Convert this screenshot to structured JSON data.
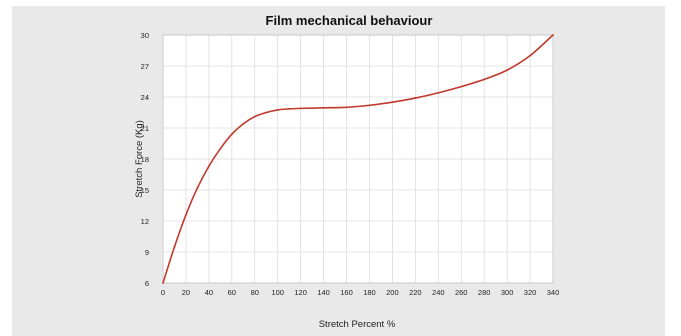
{
  "chart_data": {
    "type": "line",
    "title": "Film mechanical behaviour",
    "xlabel": "Stretch Percent %",
    "ylabel": "Stretch Force (Kg)",
    "xlim": [
      0,
      340
    ],
    "ylim": [
      6,
      30
    ],
    "xticks": [
      "0",
      "20",
      "40",
      "60",
      "80",
      "100",
      "120",
      "140",
      "160",
      "180",
      "200",
      "220",
      "240",
      "260",
      "280",
      "300",
      "320",
      "340"
    ],
    "yticks": [
      "6",
      "9",
      "12",
      "15",
      "18",
      "21",
      "24",
      "27",
      "30"
    ],
    "grid": true,
    "legend": "none",
    "line_color": "#c0392b",
    "series": [
      {
        "x": [
          0,
          10,
          20,
          30,
          40,
          50,
          60,
          70,
          80,
          90,
          100,
          110,
          120,
          140,
          160,
          180,
          200,
          220,
          240,
          260,
          280,
          300,
          320,
          340
        ],
        "values": [
          6,
          9.5,
          12.6,
          15.2,
          17.3,
          19.0,
          20.4,
          21.4,
          22.1,
          22.5,
          22.75,
          22.85,
          22.9,
          22.95,
          23.0,
          23.2,
          23.5,
          23.9,
          24.4,
          25.0,
          25.7,
          26.6,
          28.0,
          30.0
        ]
      }
    ]
  }
}
